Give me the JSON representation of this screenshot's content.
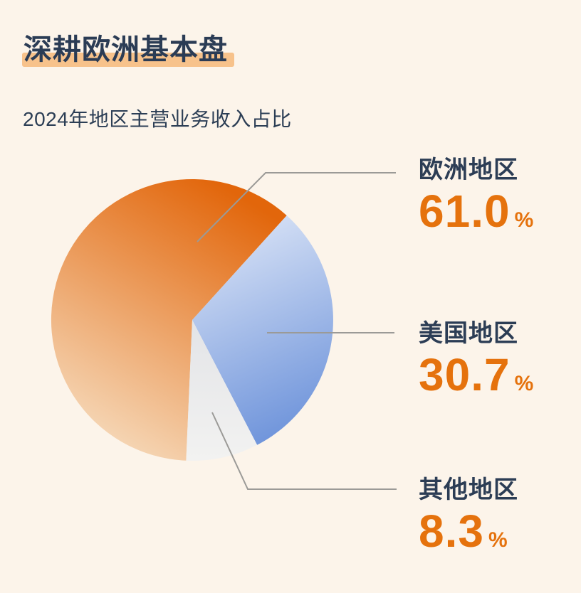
{
  "page": {
    "title": "深耕欧洲基本盘",
    "subtitle": "2024年地区主营业务收入占比"
  },
  "chart_data": {
    "type": "pie",
    "title": "2024年地区主营业务收入占比",
    "unit": "%",
    "start_angle_deg": 182.5,
    "direction": "clockwise",
    "legend_position": "right",
    "slices": [
      {
        "label": "欧洲地区",
        "value": 61.0,
        "display_value": "61.0",
        "gradient": [
          "#e2660b",
          "#f7e0c4"
        ]
      },
      {
        "label": "美国地区",
        "value": 30.7,
        "display_value": "30.7",
        "gradient": [
          "#d9e3f6",
          "#6c92da"
        ]
      },
      {
        "label": "其他地区",
        "value": 8.3,
        "display_value": "8.3",
        "gradient": [
          "#e3e4e7",
          "#f2f2f1"
        ]
      }
    ],
    "colors": {
      "background": "#fcf4ea",
      "title_text": "#2b3c55",
      "title_highlight": "#f7c28b",
      "label_text": "#2c3d55",
      "value_text": "#e5720d",
      "leader_line": "#9b9a97"
    }
  }
}
